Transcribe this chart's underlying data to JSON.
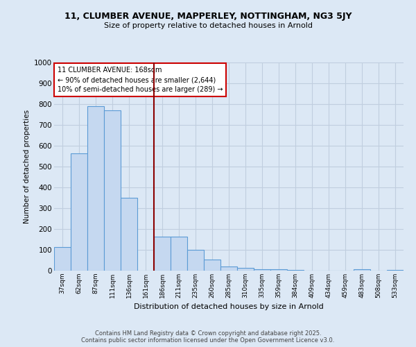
{
  "title_line1": "11, CLUMBER AVENUE, MAPPERLEY, NOTTINGHAM, NG3 5JY",
  "title_line2": "Size of property relative to detached houses in Arnold",
  "categories": [
    "37sqm",
    "62sqm",
    "87sqm",
    "111sqm",
    "136sqm",
    "161sqm",
    "186sqm",
    "211sqm",
    "235sqm",
    "260sqm",
    "285sqm",
    "310sqm",
    "335sqm",
    "359sqm",
    "384sqm",
    "409sqm",
    "434sqm",
    "459sqm",
    "483sqm",
    "508sqm",
    "533sqm"
  ],
  "values": [
    115,
    565,
    790,
    770,
    350,
    0,
    165,
    165,
    100,
    55,
    20,
    12,
    8,
    8,
    3,
    0,
    0,
    0,
    8,
    0,
    3
  ],
  "bar_color": "#c5d8f0",
  "bar_edge_color": "#5b9bd5",
  "vline_color": "#8b0000",
  "ylabel": "Number of detached properties",
  "xlabel": "Distribution of detached houses by size in Arnold",
  "ylim": [
    0,
    1000
  ],
  "yticks": [
    0,
    100,
    200,
    300,
    400,
    500,
    600,
    700,
    800,
    900,
    1000
  ],
  "annotation_title": "11 CLUMBER AVENUE: 168sqm",
  "annotation_line1": "← 90% of detached houses are smaller (2,644)",
  "annotation_line2": "10% of semi-detached houses are larger (289) →",
  "annotation_box_color": "#ffffff",
  "annotation_box_edge": "#cc0000",
  "footer_line1": "Contains HM Land Registry data © Crown copyright and database right 2025.",
  "footer_line2": "Contains public sector information licensed under the Open Government Licence v3.0.",
  "background_color": "#dce8f5",
  "plot_bg_color": "#dce8f5",
  "grid_color": "#c0cedf"
}
